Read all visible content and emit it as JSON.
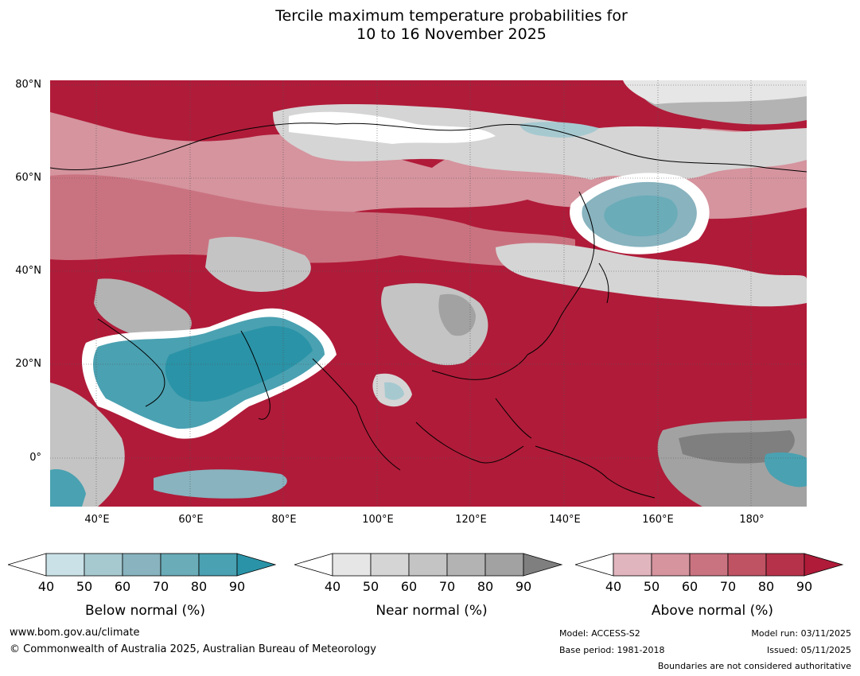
{
  "title": {
    "line1": "Tercile maximum temperature probabilities for",
    "line2": "10 to 16 November 2025"
  },
  "map": {
    "lat_labels": [
      "80°N",
      "60°N",
      "40°N",
      "20°N",
      "0°"
    ],
    "lon_labels": [
      "40°E",
      "60°E",
      "80°E",
      "100°E",
      "120°E",
      "140°E",
      "160°E",
      "180°"
    ],
    "region_note": "Asia"
  },
  "legends": [
    {
      "label": "Below normal (%)",
      "ticks": [
        "40",
        "50",
        "60",
        "70",
        "80",
        "90"
      ],
      "colors": [
        "#ffffff",
        "#c9e1e7",
        "#a6c9d0",
        "#88b3bf",
        "#6aacb8",
        "#4aa1b1",
        "#2a93a7"
      ]
    },
    {
      "label": "Near normal (%)",
      "ticks": [
        "40",
        "50",
        "60",
        "70",
        "80",
        "90"
      ],
      "colors": [
        "#ffffff",
        "#e6e6e6",
        "#d5d5d5",
        "#c4c4c4",
        "#b3b3b3",
        "#a2a2a2",
        "#7f7f7f"
      ]
    },
    {
      "label": "Above normal (%)",
      "ticks": [
        "40",
        "50",
        "60",
        "70",
        "80",
        "90"
      ],
      "colors": [
        "#ffffff",
        "#e1b5bd",
        "#d5949e",
        "#ca7380",
        "#bf5363",
        "#b6324a",
        "#b01b39"
      ]
    }
  ],
  "footer": {
    "website": "www.bom.gov.au/climate",
    "copyright": "© Commonwealth of Australia 2025, Australian Bureau of Meteorology",
    "model": "Model: ACCESS-S2",
    "base_period": "Base period: 1981-2018",
    "model_run": "Model run: 03/11/2025",
    "issued": "Issued: 05/11/2025",
    "boundaries": "Boundaries are not considered authoritative"
  }
}
